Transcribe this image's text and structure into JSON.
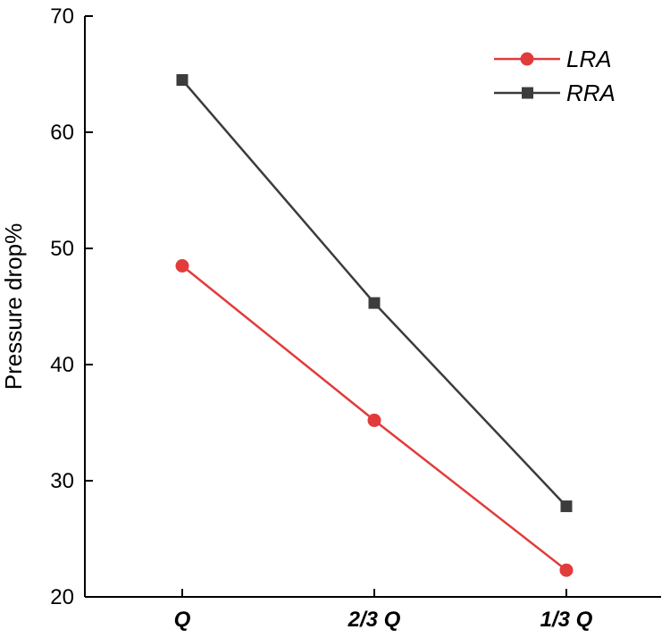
{
  "chart_data": {
    "type": "line",
    "title": "",
    "xlabel": "",
    "ylabel": "Pressure drop%",
    "categories": [
      "Q",
      "2/3 Q",
      "1/3 Q"
    ],
    "ylim": [
      20,
      70
    ],
    "yticks": [
      20,
      30,
      40,
      50,
      60,
      70
    ],
    "grid": false,
    "legend_position": "top-right",
    "series": [
      {
        "name": "LRA",
        "color": "#e23b3b",
        "marker": "circle",
        "values": [
          48.5,
          35.2,
          22.3
        ]
      },
      {
        "name": "RRA",
        "color": "#3c3c3c",
        "marker": "square",
        "values": [
          64.5,
          45.3,
          27.8
        ]
      }
    ]
  }
}
